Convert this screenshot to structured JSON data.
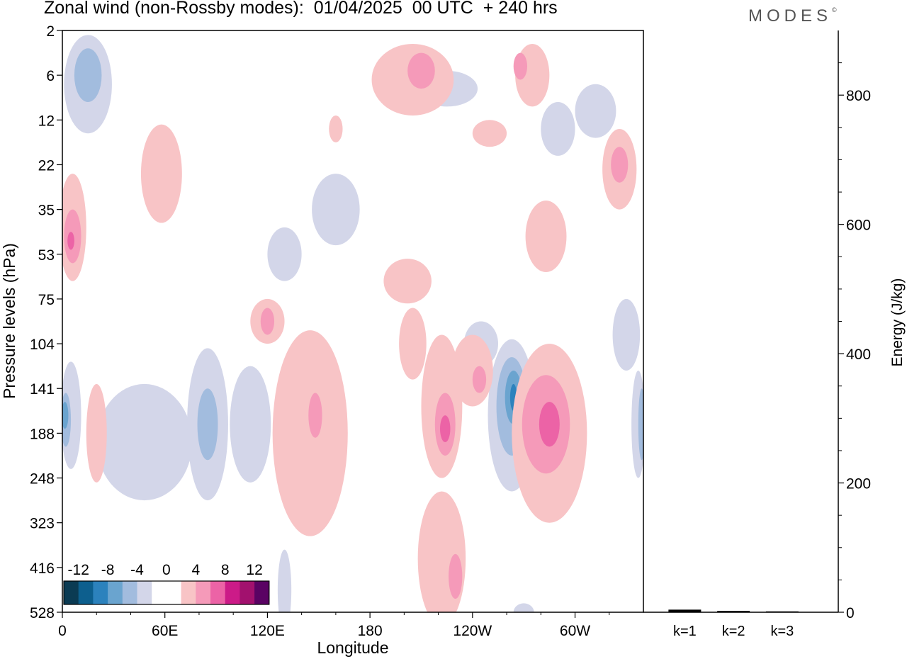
{
  "title": "Zonal wind (non-Rossby modes):  01/04/2025  00 UTC  + 240 hrs",
  "logo": "MODES",
  "logo_mark": "©",
  "chart_data": [
    {
      "type": "heatmap",
      "title": "Zonal wind (non-Rossby modes):  01/04/2025  00 UTC  + 240 hrs",
      "xlabel": "Longitude",
      "ylabel": "Pressure levels (hPa)",
      "x_ticks": [
        "0",
        "60E",
        "120E",
        "180",
        "120W",
        "60W"
      ],
      "x_range": [
        0,
        340
      ],
      "y_ticks": [
        "2",
        "6",
        "12",
        "22",
        "35",
        "53",
        "75",
        "104",
        "141",
        "188",
        "248",
        "323",
        "416",
        "528"
      ],
      "colorbar": {
        "labels": [
          "-12",
          "-8",
          "-4",
          "0",
          "4",
          "8",
          "12"
        ],
        "colors": [
          "#0b3b53",
          "#0d5f8e",
          "#2c82bd",
          "#6aa4cf",
          "#a2bcde",
          "#d3d6e9",
          "#ffffff",
          "#ffffff",
          "#f8c4c6",
          "#f59ab9",
          "#ec63a6",
          "#cc1b88",
          "#a2116e",
          "#5a0363"
        ]
      },
      "features": [
        {
          "sign": "neg",
          "level": 1,
          "lon": 5,
          "lev": 8.6,
          "w": 6,
          "h": 2.4
        },
        {
          "sign": "neg",
          "level": 2,
          "lon": 2,
          "lev": 8.7,
          "w": 3,
          "h": 1.2
        },
        {
          "sign": "neg",
          "level": 3,
          "lon": 1.5,
          "lev": 8.6,
          "w": 2,
          "h": 0.6
        },
        {
          "sign": "neg",
          "level": 1,
          "lon": 48,
          "lev": 9.2,
          "w": 28,
          "h": 2.6
        },
        {
          "sign": "neg",
          "level": 1,
          "lon": 85,
          "lev": 8.8,
          "w": 12,
          "h": 3.4
        },
        {
          "sign": "neg",
          "level": 2,
          "lon": 85,
          "lev": 8.8,
          "w": 6,
          "h": 1.6
        },
        {
          "sign": "neg",
          "level": 1,
          "lon": 110,
          "lev": 8.8,
          "w": 12,
          "h": 2.6
        },
        {
          "sign": "neg",
          "level": 1,
          "lon": 263,
          "lev": 8.6,
          "w": 14,
          "h": 3.4
        },
        {
          "sign": "neg",
          "level": 2,
          "lon": 263,
          "lev": 8.4,
          "w": 9,
          "h": 2.2
        },
        {
          "sign": "neg",
          "level": 3,
          "lon": 264,
          "lev": 8.2,
          "w": 5,
          "h": 1.2
        },
        {
          "sign": "neg",
          "level": 4,
          "lon": 264,
          "lev": 8.2,
          "w": 2,
          "h": 0.6
        },
        {
          "sign": "neg",
          "level": 1,
          "lon": 337,
          "lev": 8.8,
          "w": 4,
          "h": 2.4
        },
        {
          "sign": "neg",
          "level": 2,
          "lon": 339,
          "lev": 8.8,
          "w": 2,
          "h": 1.6
        },
        {
          "sign": "neg",
          "level": 1,
          "lon": 15,
          "lev": 1.2,
          "w": 14,
          "h": 2.2
        },
        {
          "sign": "neg",
          "level": 2,
          "lon": 15,
          "lev": 1.0,
          "w": 8,
          "h": 1.2
        },
        {
          "sign": "neg",
          "level": 1,
          "lon": 225,
          "lev": 1.3,
          "w": 18,
          "h": 0.8
        },
        {
          "sign": "neg",
          "level": 1,
          "lon": 312,
          "lev": 1.8,
          "w": 12,
          "h": 1.2
        },
        {
          "sign": "neg",
          "level": 1,
          "lon": 290,
          "lev": 2.2,
          "w": 10,
          "h": 1.2
        },
        {
          "sign": "neg",
          "level": 1,
          "lon": 160,
          "lev": 4.0,
          "w": 14,
          "h": 1.6
        },
        {
          "sign": "neg",
          "level": 1,
          "lon": 130,
          "lev": 5.0,
          "w": 10,
          "h": 1.2
        },
        {
          "sign": "neg",
          "level": 1,
          "lon": 245,
          "lev": 7.0,
          "w": 10,
          "h": 1.0
        },
        {
          "sign": "neg",
          "level": 1,
          "lon": 330,
          "lev": 6.8,
          "w": 8,
          "h": 1.6
        },
        {
          "sign": "neg",
          "level": 1,
          "lon": 130,
          "lev": 12.5,
          "w": 4,
          "h": 1.8
        },
        {
          "sign": "neg",
          "level": 1,
          "lon": 270,
          "lev": 13.0,
          "w": 6,
          "h": 0.4
        },
        {
          "sign": "pos",
          "level": 1,
          "lon": 6,
          "lev": 4.4,
          "w": 8,
          "h": 2.4
        },
        {
          "sign": "pos",
          "level": 2,
          "lon": 6,
          "lev": 4.6,
          "w": 5,
          "h": 1.2
        },
        {
          "sign": "pos",
          "level": 3,
          "lon": 5,
          "lev": 4.7,
          "w": 2,
          "h": 0.4
        },
        {
          "sign": "pos",
          "level": 1,
          "lon": 58,
          "lev": 3.2,
          "w": 12,
          "h": 2.2
        },
        {
          "sign": "pos",
          "level": 1,
          "lon": 120,
          "lev": 6.5,
          "w": 10,
          "h": 1.0
        },
        {
          "sign": "pos",
          "level": 2,
          "lon": 120,
          "lev": 6.5,
          "w": 4,
          "h": 0.6
        },
        {
          "sign": "pos",
          "level": 1,
          "lon": 20,
          "lev": 9.0,
          "w": 6,
          "h": 2.2
        },
        {
          "sign": "pos",
          "level": 1,
          "lon": 145,
          "lev": 9.0,
          "w": 22,
          "h": 4.6
        },
        {
          "sign": "pos",
          "level": 2,
          "lon": 148,
          "lev": 8.6,
          "w": 4,
          "h": 1.0
        },
        {
          "sign": "pos",
          "level": 1,
          "lon": 222,
          "lev": 8.4,
          "w": 12,
          "h": 3.2
        },
        {
          "sign": "pos",
          "level": 2,
          "lon": 224,
          "lev": 8.8,
          "w": 6,
          "h": 1.4
        },
        {
          "sign": "pos",
          "level": 3,
          "lon": 224,
          "lev": 8.9,
          "w": 3,
          "h": 0.6
        },
        {
          "sign": "pos",
          "level": 1,
          "lon": 240,
          "lev": 7.6,
          "w": 12,
          "h": 1.6
        },
        {
          "sign": "pos",
          "level": 2,
          "lon": 244,
          "lev": 7.8,
          "w": 4,
          "h": 0.6
        },
        {
          "sign": "pos",
          "level": 1,
          "lon": 285,
          "lev": 9.0,
          "w": 22,
          "h": 4.0
        },
        {
          "sign": "pos",
          "level": 2,
          "lon": 283,
          "lev": 8.8,
          "w": 14,
          "h": 2.2
        },
        {
          "sign": "pos",
          "level": 3,
          "lon": 285,
          "lev": 8.8,
          "w": 6,
          "h": 1.0
        },
        {
          "sign": "pos",
          "level": 1,
          "lon": 222,
          "lev": 11.8,
          "w": 14,
          "h": 3.0
        },
        {
          "sign": "pos",
          "level": 2,
          "lon": 230,
          "lev": 12.2,
          "w": 4,
          "h": 1.0
        },
        {
          "sign": "pos",
          "level": 1,
          "lon": 202,
          "lev": 5.6,
          "w": 14,
          "h": 1.0
        },
        {
          "sign": "pos",
          "level": 1,
          "lon": 205,
          "lev": 1.1,
          "w": 24,
          "h": 1.6
        },
        {
          "sign": "pos",
          "level": 2,
          "lon": 210,
          "lev": 0.9,
          "w": 8,
          "h": 0.8
        },
        {
          "sign": "pos",
          "level": 1,
          "lon": 275,
          "lev": 1.0,
          "w": 10,
          "h": 1.4
        },
        {
          "sign": "pos",
          "level": 2,
          "lon": 268,
          "lev": 0.8,
          "w": 4,
          "h": 0.6
        },
        {
          "sign": "pos",
          "level": 1,
          "lon": 326,
          "lev": 3.1,
          "w": 10,
          "h": 1.8
        },
        {
          "sign": "pos",
          "level": 2,
          "lon": 326,
          "lev": 3.0,
          "w": 5,
          "h": 0.8
        },
        {
          "sign": "pos",
          "level": 1,
          "lon": 283,
          "lev": 4.6,
          "w": 12,
          "h": 1.6
        },
        {
          "sign": "pos",
          "level": 1,
          "lon": 160,
          "lev": 2.2,
          "w": 4,
          "h": 0.6
        },
        {
          "sign": "pos",
          "level": 1,
          "lon": 250,
          "lev": 2.3,
          "w": 10,
          "h": 0.6
        },
        {
          "sign": "pos",
          "level": 1,
          "lon": 205,
          "lev": 7.0,
          "w": 8,
          "h": 1.6
        }
      ]
    },
    {
      "type": "bar",
      "categories": [
        "k=1",
        "k=2",
        "k=3"
      ],
      "values": [
        4,
        2,
        1
      ],
      "ylabel": "Energy (J/kg)",
      "ylim": [
        0,
        900
      ],
      "y_ticks": [
        0,
        200,
        400,
        600,
        800
      ]
    }
  ]
}
